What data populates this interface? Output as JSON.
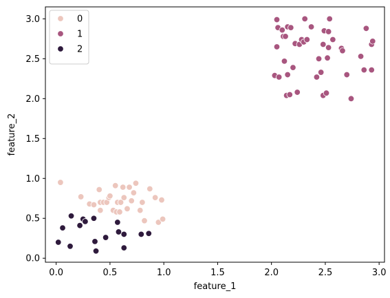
{
  "chart_data": {
    "type": "scatter",
    "title": "",
    "xlabel": "feature_1",
    "ylabel": "feature_2",
    "xlim": [
      -0.1,
      3.05
    ],
    "ylim": [
      -0.05,
      3.15
    ],
    "xticks": [
      0.0,
      0.5,
      1.0,
      1.5,
      2.0,
      2.5,
      3.0
    ],
    "xtick_labels": [
      "0.0",
      "0.5",
      "1.0",
      "1.5",
      "2.0",
      "2.5",
      "3.0"
    ],
    "yticks": [
      0.0,
      0.5,
      1.0,
      1.5,
      2.0,
      2.5,
      3.0
    ],
    "ytick_labels": [
      "0.0",
      "0.5",
      "1.0",
      "1.5",
      "2.0",
      "2.5",
      "3.0"
    ],
    "grid": false,
    "legend_position": "top-left",
    "series": [
      {
        "name": "0",
        "color": "#ecc6bd",
        "points": [
          [
            0.04,
            0.95
          ],
          [
            0.23,
            0.77
          ],
          [
            0.31,
            0.68
          ],
          [
            0.35,
            0.67
          ],
          [
            0.4,
            0.86
          ],
          [
            0.41,
            0.7
          ],
          [
            0.41,
            0.6
          ],
          [
            0.44,
            0.7
          ],
          [
            0.47,
            0.7
          ],
          [
            0.49,
            0.76
          ],
          [
            0.5,
            0.78
          ],
          [
            0.53,
            0.6
          ],
          [
            0.55,
            0.91
          ],
          [
            0.56,
            0.58
          ],
          [
            0.57,
            0.7
          ],
          [
            0.59,
            0.58
          ],
          [
            0.6,
            0.7
          ],
          [
            0.62,
            0.89
          ],
          [
            0.63,
            0.76
          ],
          [
            0.66,
            0.62
          ],
          [
            0.68,
            0.89
          ],
          [
            0.7,
            0.72
          ],
          [
            0.72,
            0.82
          ],
          [
            0.74,
            0.94
          ],
          [
            0.78,
            0.6
          ],
          [
            0.8,
            0.7
          ],
          [
            0.82,
            0.47
          ],
          [
            0.87,
            0.87
          ],
          [
            0.92,
            0.76
          ],
          [
            0.95,
            0.45
          ],
          [
            0.98,
            0.73
          ],
          [
            0.99,
            0.49
          ]
        ]
      },
      {
        "name": "1",
        "color": "#a8567f",
        "points": [
          [
            2.03,
            2.29
          ],
          [
            2.05,
            2.65
          ],
          [
            2.05,
            2.99
          ],
          [
            2.06,
            2.89
          ],
          [
            2.07,
            2.27
          ],
          [
            2.1,
            2.86
          ],
          [
            2.11,
            2.78
          ],
          [
            2.12,
            2.47
          ],
          [
            2.13,
            2.78
          ],
          [
            2.14,
            2.04
          ],
          [
            2.15,
            2.3
          ],
          [
            2.15,
            2.9
          ],
          [
            2.17,
            2.05
          ],
          [
            2.18,
            2.89
          ],
          [
            2.2,
            2.39
          ],
          [
            2.22,
            2.69
          ],
          [
            2.24,
            2.08
          ],
          [
            2.26,
            2.68
          ],
          [
            2.28,
            2.74
          ],
          [
            2.3,
            2.71
          ],
          [
            2.31,
            3.0
          ],
          [
            2.33,
            2.74
          ],
          [
            2.37,
            2.9
          ],
          [
            2.42,
            2.27
          ],
          [
            2.44,
            2.5
          ],
          [
            2.46,
            2.33
          ],
          [
            2.48,
            2.04
          ],
          [
            2.48,
            2.68
          ],
          [
            2.49,
            2.85
          ],
          [
            2.51,
            2.07
          ],
          [
            2.52,
            2.51
          ],
          [
            2.53,
            2.64
          ],
          [
            2.53,
            2.84
          ],
          [
            2.54,
            3.0
          ],
          [
            2.57,
            2.74
          ],
          [
            2.65,
            2.63
          ],
          [
            2.66,
            2.6
          ],
          [
            2.7,
            2.3
          ],
          [
            2.74,
            2.0
          ],
          [
            2.83,
            2.53
          ],
          [
            2.86,
            2.36
          ],
          [
            2.88,
            2.88
          ],
          [
            2.93,
            2.36
          ],
          [
            2.93,
            2.68
          ],
          [
            2.94,
            2.72
          ]
        ]
      },
      {
        "name": "2",
        "color": "#2e1a3c",
        "points": [
          [
            0.02,
            0.2
          ],
          [
            0.06,
            0.38
          ],
          [
            0.13,
            0.15
          ],
          [
            0.14,
            0.53
          ],
          [
            0.22,
            0.41
          ],
          [
            0.25,
            0.49
          ],
          [
            0.27,
            0.46
          ],
          [
            0.35,
            0.5
          ],
          [
            0.36,
            0.21
          ],
          [
            0.37,
            0.09
          ],
          [
            0.46,
            0.26
          ],
          [
            0.57,
            0.45
          ],
          [
            0.58,
            0.33
          ],
          [
            0.63,
            0.13
          ],
          [
            0.63,
            0.3
          ],
          [
            0.79,
            0.3
          ],
          [
            0.86,
            0.31
          ]
        ]
      }
    ]
  }
}
